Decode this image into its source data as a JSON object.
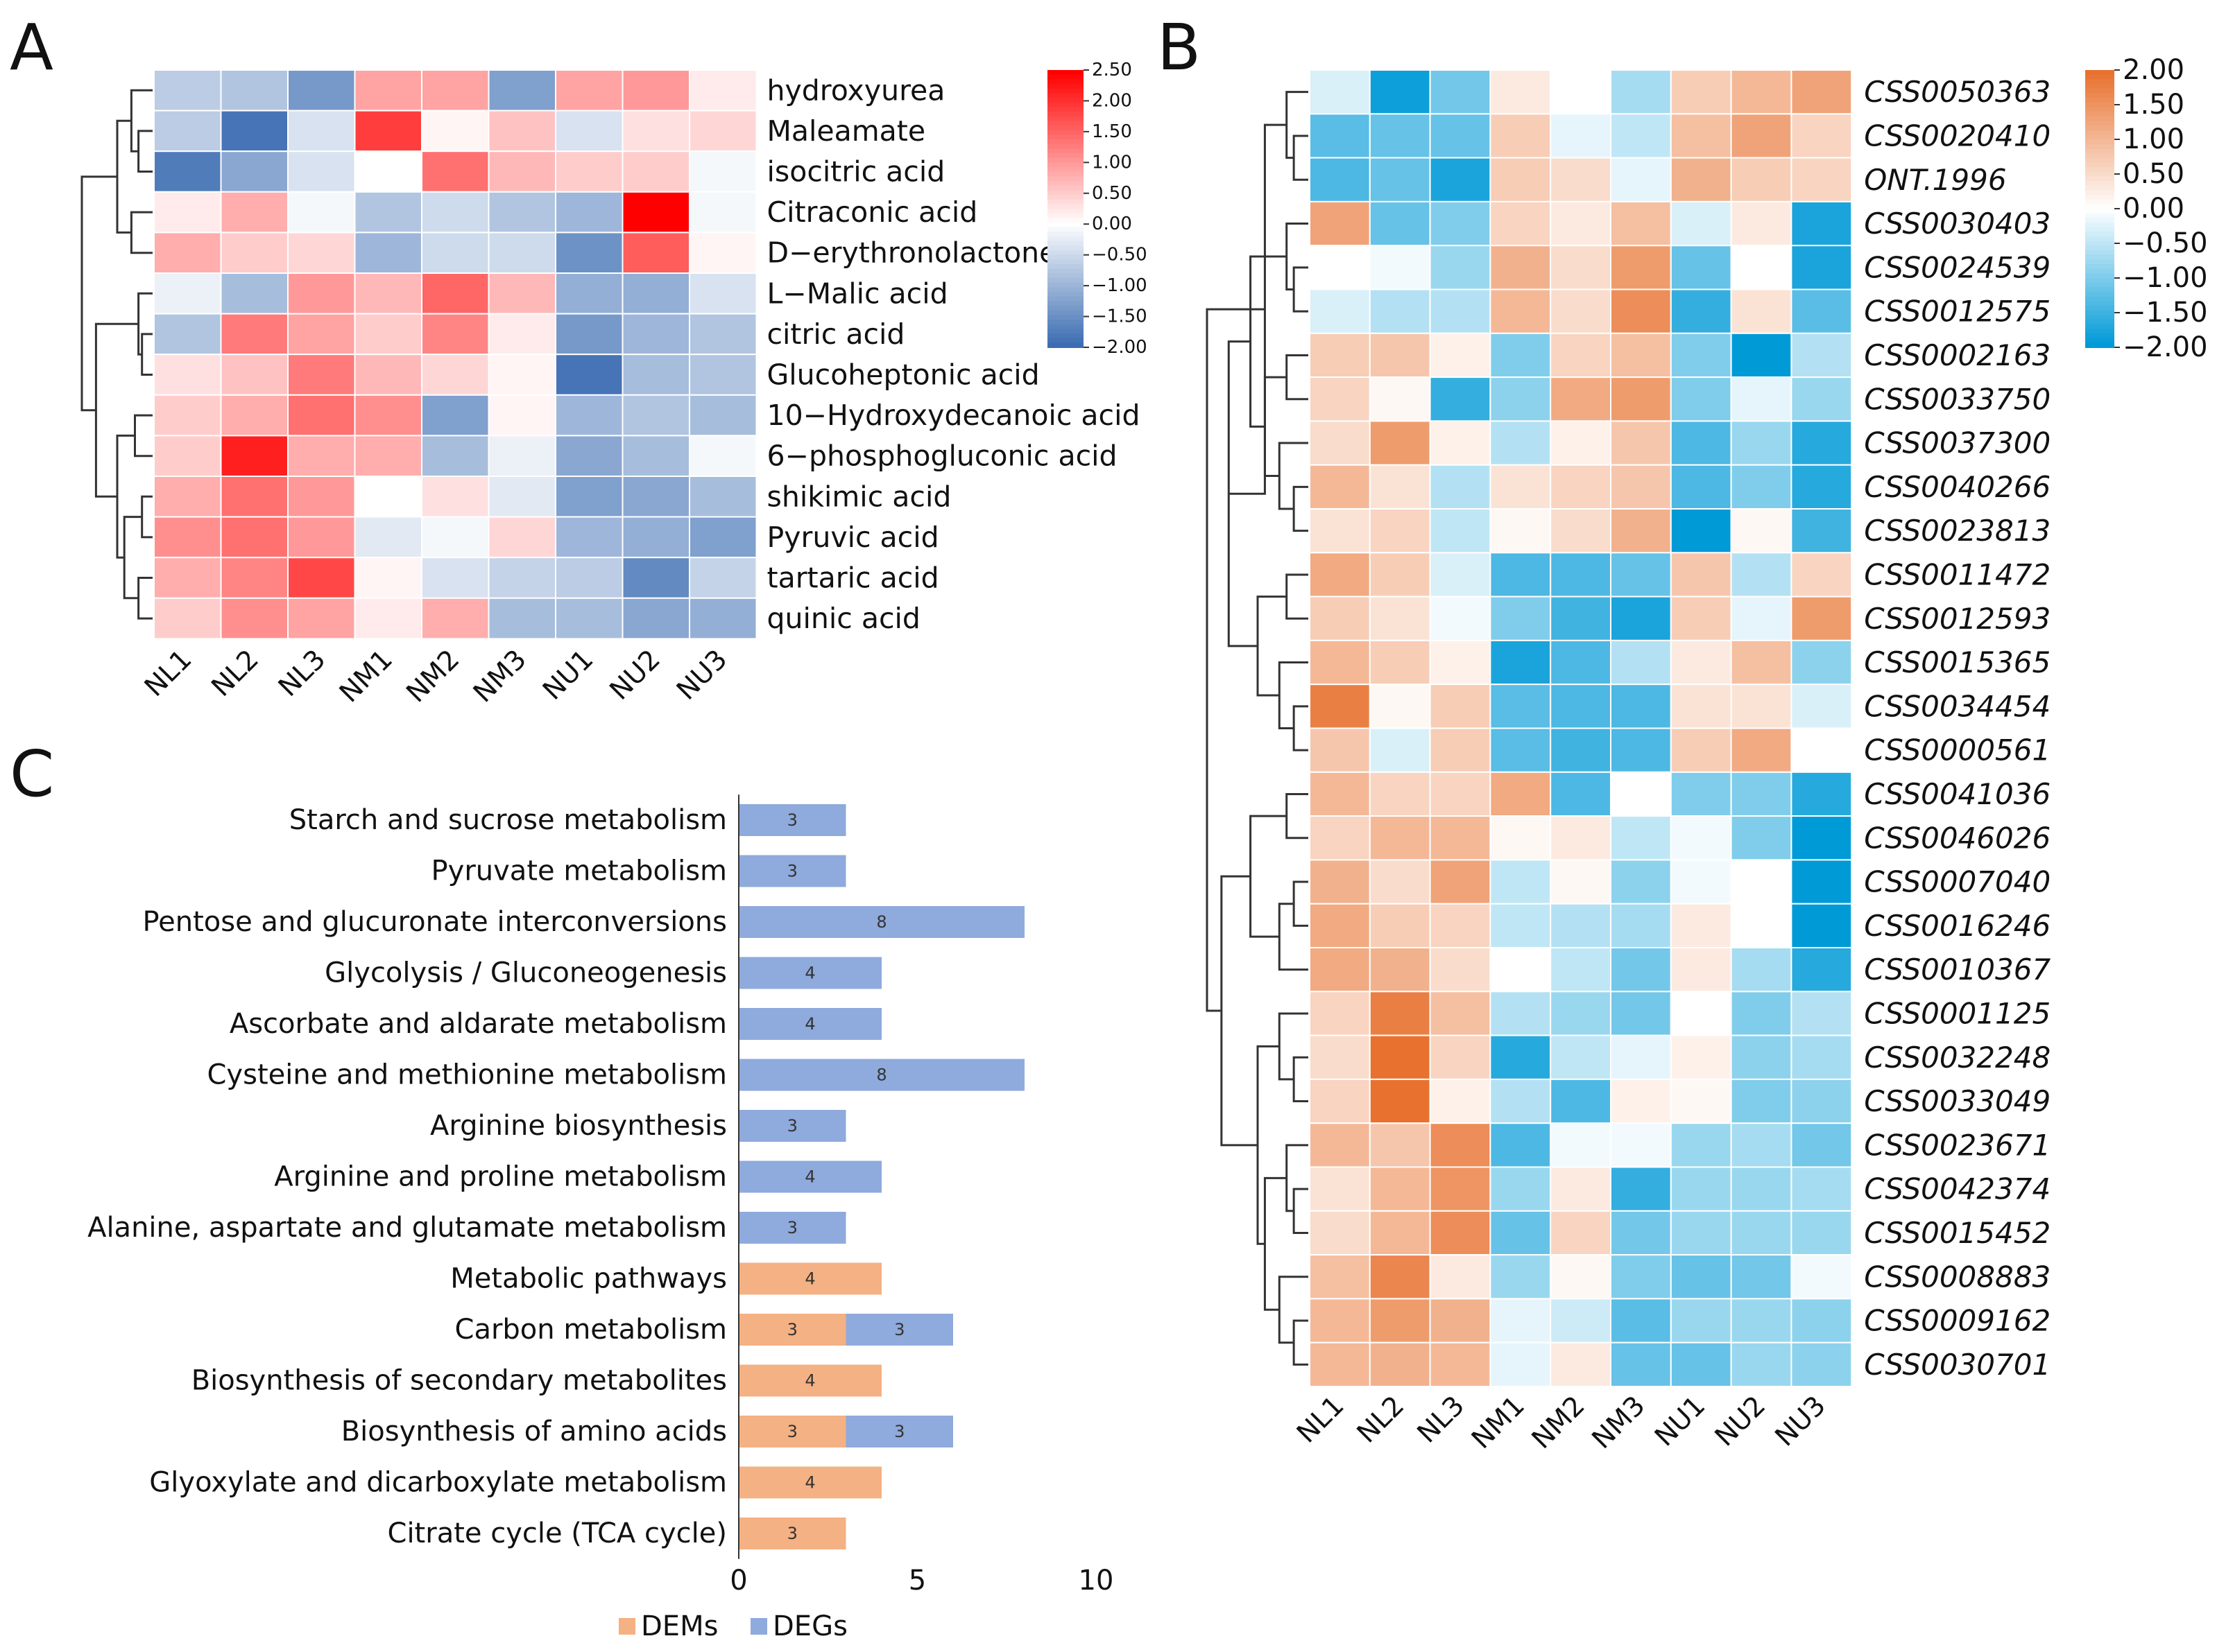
{
  "chart_data": [
    {
      "panel": "A",
      "type": "heatmap",
      "columns": [
        "NL1",
        "NL2",
        "NL3",
        "NM1",
        "NM2",
        "NM3",
        "NU1",
        "NU2",
        "NU3"
      ],
      "rows": [
        "hydroxyurea",
        "Maleamate",
        "isocitric acid",
        "Citraconic acid",
        "D−erythronolactone",
        "L−Malic acid",
        "citric acid",
        "Glucoheptonic acid",
        "10−Hydroxydecanoic acid",
        "6−phosphogluconic acid",
        "shikimic acid",
        "Pyruvic acid",
        "tartaric acid",
        "quinic acid"
      ],
      "values": [
        [
          -0.7,
          -0.8,
          -1.4,
          0.9,
          0.9,
          -1.3,
          0.9,
          1.0,
          0.2
        ],
        [
          -0.7,
          -1.9,
          -0.4,
          1.9,
          0.1,
          0.6,
          -0.4,
          0.3,
          0.4
        ],
        [
          -1.8,
          -1.2,
          -0.4,
          0.0,
          1.4,
          0.7,
          0.5,
          0.5,
          -0.1
        ],
        [
          0.2,
          0.8,
          -0.1,
          -0.8,
          -0.5,
          -0.8,
          -1.0,
          2.5,
          -0.1
        ],
        [
          0.8,
          0.5,
          0.4,
          -1.0,
          -0.5,
          -0.5,
          -1.5,
          1.6,
          0.1
        ],
        [
          -0.2,
          -0.9,
          1.0,
          0.7,
          1.5,
          0.7,
          -1.1,
          -1.1,
          -0.4
        ],
        [
          -0.8,
          1.3,
          0.9,
          0.5,
          1.2,
          0.2,
          -1.4,
          -1.0,
          -0.8
        ],
        [
          0.3,
          0.6,
          1.3,
          0.7,
          0.4,
          0.1,
          -1.9,
          -0.9,
          -0.8
        ],
        [
          0.5,
          0.8,
          1.4,
          1.1,
          -1.3,
          0.1,
          -1.0,
          -0.8,
          -0.9
        ],
        [
          0.5,
          2.2,
          0.8,
          0.8,
          -0.9,
          -0.2,
          -1.2,
          -0.9,
          -0.1
        ],
        [
          0.8,
          1.4,
          1.0,
          0.0,
          0.3,
          -0.3,
          -1.3,
          -1.2,
          -0.9
        ],
        [
          1.1,
          1.4,
          1.0,
          -0.3,
          -0.1,
          0.4,
          -1.0,
          -1.1,
          -1.3
        ],
        [
          0.8,
          1.2,
          1.8,
          0.1,
          -0.4,
          -0.6,
          -0.7,
          -1.6,
          -0.6
        ],
        [
          0.5,
          1.1,
          0.9,
          0.2,
          0.8,
          -0.9,
          -0.9,
          -1.2,
          -1.1
        ]
      ],
      "legend_ticks": [
        "2.50",
        "2.00",
        "1.50",
        "1.00",
        "0.50",
        "0.00",
        "−0.50",
        "−1.00",
        "−1.50",
        "−2.00"
      ],
      "scale": [
        -2.0,
        2.5
      ],
      "colors": {
        "low": "#3c6db2",
        "mid": "#ffffff",
        "high": "#ff0000"
      }
    },
    {
      "panel": "B",
      "type": "heatmap",
      "columns": [
        "NL1",
        "NL2",
        "NL3",
        "NM1",
        "NM2",
        "NM3",
        "NU1",
        "NU2",
        "NU3"
      ],
      "rows": [
        "CSS0050363",
        "CSS0020410",
        "ONT.1996",
        "CSS0030403",
        "CSS0024539",
        "CSS0012575",
        "CSS0002163",
        "CSS0033750",
        "CSS0037300",
        "CSS0040266",
        "CSS0023813",
        "CSS0011472",
        "CSS0012593",
        "CSS0015365",
        "CSS0034454",
        "CSS0000561",
        "CSS0041036",
        "CSS0046026",
        "CSS0007040",
        "CSS0016246",
        "CSS0010367",
        "CSS0001125",
        "CSS0032248",
        "CSS0033049",
        "CSS0023671",
        "CSS0042374",
        "CSS0015452",
        "CSS0008883",
        "CSS0009162",
        "CSS0030701"
      ],
      "values": [
        [
          -0.3,
          -1.9,
          -1.1,
          0.3,
          0.0,
          -0.7,
          0.7,
          1.0,
          1.3
        ],
        [
          -1.3,
          -1.2,
          -1.2,
          0.7,
          -0.2,
          -0.5,
          0.9,
          1.3,
          0.6
        ],
        [
          -1.4,
          -1.2,
          -1.8,
          0.7,
          0.5,
          -0.2,
          1.1,
          0.7,
          0.6
        ],
        [
          1.3,
          -1.2,
          -1.0,
          0.6,
          0.3,
          0.9,
          -0.3,
          0.3,
          -1.8
        ],
        [
          0.0,
          -0.1,
          -0.8,
          1.1,
          0.5,
          1.4,
          -1.2,
          0.0,
          -1.8
        ],
        [
          -0.3,
          -0.6,
          -0.6,
          1.0,
          0.5,
          1.6,
          -1.6,
          0.4,
          -1.3
        ],
        [
          0.7,
          0.8,
          0.2,
          -1.0,
          0.6,
          0.9,
          -1.0,
          -2.0,
          -0.6
        ],
        [
          0.6,
          0.1,
          -1.6,
          -0.9,
          1.2,
          1.4,
          -1.0,
          -0.2,
          -0.8
        ],
        [
          0.5,
          1.4,
          0.2,
          -0.6,
          0.2,
          0.8,
          -1.4,
          -0.8,
          -1.7
        ],
        [
          1.0,
          0.4,
          -0.6,
          0.4,
          0.6,
          0.8,
          -1.4,
          -1.0,
          -1.7
        ],
        [
          0.4,
          0.6,
          -0.5,
          0.1,
          0.5,
          1.1,
          -2.0,
          0.1,
          -1.5
        ],
        [
          1.2,
          0.7,
          -0.3,
          -1.4,
          -1.4,
          -1.2,
          0.8,
          -0.6,
          0.6
        ],
        [
          0.7,
          0.4,
          -0.1,
          -1.0,
          -1.5,
          -1.8,
          0.7,
          -0.2,
          1.4
        ],
        [
          1.0,
          0.7,
          0.2,
          -1.8,
          -1.4,
          -0.6,
          0.3,
          0.9,
          -0.9
        ],
        [
          1.8,
          0.1,
          0.7,
          -1.3,
          -1.4,
          -1.4,
          0.4,
          0.4,
          -0.3
        ],
        [
          0.8,
          -0.3,
          0.7,
          -1.3,
          -1.5,
          -1.4,
          0.7,
          1.2,
          0.0
        ],
        [
          1.0,
          0.6,
          0.6,
          1.2,
          -1.4,
          0.0,
          -1.0,
          -1.0,
          -1.7
        ],
        [
          0.6,
          1.0,
          1.0,
          0.1,
          0.3,
          -0.5,
          -0.1,
          -1.0,
          -2.0
        ],
        [
          1.1,
          0.5,
          1.3,
          -0.5,
          0.1,
          -0.9,
          -0.1,
          0.0,
          -2.0
        ],
        [
          1.2,
          0.7,
          0.6,
          -0.5,
          -0.6,
          -0.7,
          0.3,
          0.0,
          -2.0
        ],
        [
          1.2,
          1.1,
          0.5,
          0.0,
          -0.5,
          -1.1,
          0.3,
          -0.7,
          -1.7
        ],
        [
          0.6,
          1.8,
          0.9,
          -0.6,
          -0.8,
          -1.1,
          0.0,
          -1.0,
          -0.6
        ],
        [
          0.5,
          2.0,
          0.6,
          -1.7,
          -0.5,
          -0.2,
          0.2,
          -0.9,
          -0.7
        ],
        [
          0.6,
          2.0,
          0.2,
          -0.6,
          -1.4,
          0.2,
          0.1,
          -1.0,
          -0.9
        ],
        [
          1.0,
          0.8,
          1.6,
          -1.4,
          -0.1,
          -0.1,
          -0.8,
          -0.7,
          -1.1
        ],
        [
          0.4,
          1.0,
          1.5,
          -0.8,
          0.3,
          -1.6,
          -0.8,
          -0.8,
          -0.7
        ],
        [
          0.5,
          1.0,
          1.6,
          -1.2,
          0.6,
          -1.1,
          -0.8,
          -0.8,
          -0.8
        ],
        [
          0.9,
          1.7,
          0.3,
          -0.8,
          0.1,
          -1.0,
          -1.2,
          -1.1,
          -0.1
        ],
        [
          1.0,
          1.4,
          1.1,
          -0.2,
          -0.4,
          -1.3,
          -0.8,
          -0.8,
          -0.9
        ],
        [
          1.0,
          1.1,
          1.0,
          -0.2,
          0.3,
          -1.2,
          -1.2,
          -0.8,
          -0.9
        ]
      ],
      "legend_ticks": [
        "2.00",
        "1.50",
        "1.00",
        "0.50",
        "0.00",
        "−0.50",
        "−1.00",
        "−1.50",
        "−2.00"
      ],
      "scale": [
        -2.0,
        2.0
      ],
      "colors": {
        "low": "#009ad7",
        "mid": "#ffffff",
        "high": "#e8712f"
      }
    },
    {
      "panel": "C",
      "type": "bar",
      "orientation": "horizontal",
      "stacked": true,
      "categories": [
        "Starch and sucrose metabolism",
        "Pyruvate metabolism",
        "Pentose and glucuronate interconversions",
        "Glycolysis / Gluconeogenesis",
        "Ascorbate and aldarate metabolism",
        "Cysteine and methionine metabolism",
        "Arginine biosynthesis",
        "Arginine and proline metabolism",
        "Alanine, aspartate and glutamate metabolism",
        "Metabolic pathways",
        "Carbon metabolism",
        "Biosynthesis of secondary metabolites",
        "Biosynthesis of amino acids",
        "Glyoxylate and dicarboxylate metabolism",
        "Citrate cycle (TCA cycle)"
      ],
      "series": [
        {
          "name": "DEMs",
          "color": "#f4b183",
          "values": [
            0,
            0,
            0,
            0,
            0,
            0,
            0,
            0,
            0,
            4,
            3,
            4,
            3,
            4,
            3
          ]
        },
        {
          "name": "DEGs",
          "color": "#8faadc",
          "values": [
            3,
            3,
            8,
            4,
            4,
            8,
            3,
            4,
            3,
            0,
            3,
            0,
            3,
            0,
            0
          ]
        }
      ],
      "xlim": [
        0,
        10
      ],
      "xticks": [
        "0",
        "5",
        "10"
      ],
      "legend_position": "bottom"
    }
  ],
  "panels": {
    "a": "A",
    "b": "B",
    "c": "C"
  }
}
